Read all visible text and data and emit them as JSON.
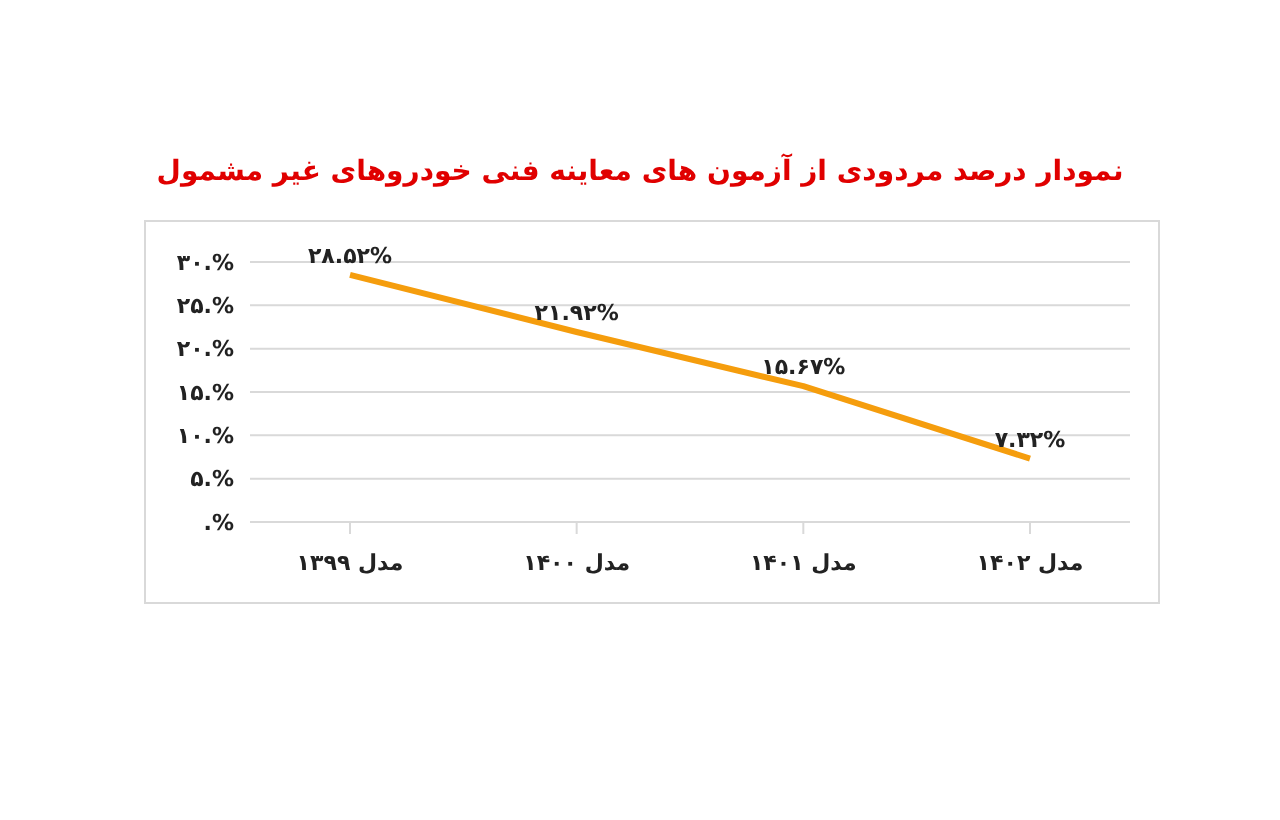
{
  "chart_data": {
    "type": "line",
    "title": "نمودار درصد مردودی از آزمون های معاینه فنی خودروهای غیر مشمول",
    "categories": [
      "مدل ۱۳۹۹",
      "مدل ۱۴۰۰",
      "مدل ۱۴۰۱",
      "مدل ۱۴۰۲"
    ],
    "series": [
      {
        "color": "#f59d0d",
        "values": [
          28.52,
          21.92,
          15.67,
          7.32
        ],
        "value_labels": [
          "۲۸.۵۲%",
          "۲۱.۹۲%",
          "۱۵.۶۷%",
          "۷.۳۲%"
        ]
      }
    ],
    "ylim": [
      0,
      30
    ],
    "yticks": [
      {
        "value": 0,
        "label": ".%"
      },
      {
        "value": 5,
        "label": "۵.%"
      },
      {
        "value": 10,
        "label": "۱۰.%"
      },
      {
        "value": 15,
        "label": "۱۵.%"
      },
      {
        "value": 20,
        "label": "۲۰.%"
      },
      {
        "value": 25,
        "label": "۲۵.%"
      },
      {
        "value": 30,
        "label": "۳۰.%"
      }
    ],
    "grid": "y",
    "marker": "none",
    "line_style": "solid"
  }
}
